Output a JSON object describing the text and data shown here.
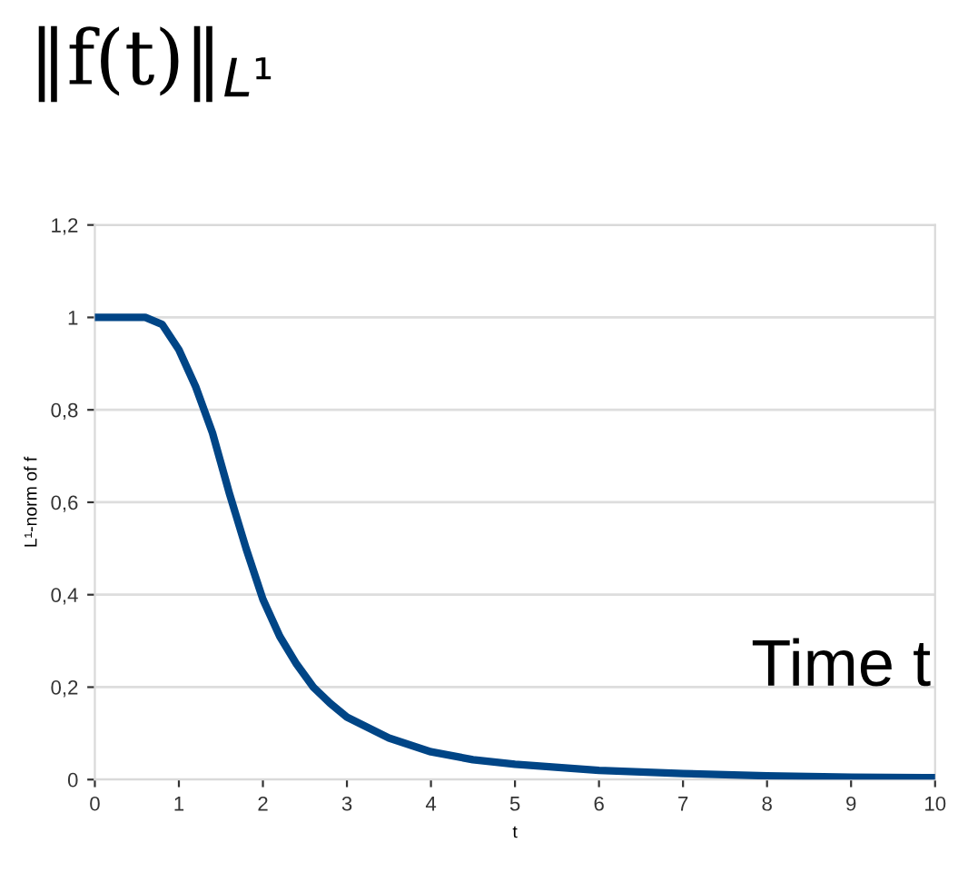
{
  "chart_data": {
    "type": "line",
    "title": "‖f(t)‖$_{L¹}$",
    "xlabel": "t",
    "ylabel": "L¹-norm of f",
    "annotations": [
      "Time t"
    ],
    "series": [
      {
        "color": "#004586",
        "x": [
          0,
          0.3,
          0.6,
          0.8,
          1,
          1.2,
          1.4,
          1.6,
          1.8,
          2,
          2.2,
          2.4,
          2.6,
          2.8,
          3,
          3.5,
          4,
          4.5,
          5,
          6,
          7,
          8,
          9,
          10
        ],
        "values": [
          1,
          1,
          1,
          0.985,
          0.93,
          0.85,
          0.75,
          0.62,
          0.5,
          0.39,
          0.31,
          0.25,
          0.2,
          0.165,
          0.135,
          0.09,
          0.06,
          0.043,
          0.033,
          0.02,
          0.013,
          0.008,
          0.005,
          0.004
        ]
      }
    ],
    "xlim": [
      0,
      10
    ],
    "xticks": [
      0,
      1,
      2,
      3,
      4,
      5,
      6,
      7,
      8,
      9,
      10
    ],
    "ylim": [
      0,
      1.2
    ],
    "yticks": [
      0,
      {
        "value": 0.2,
        "label": "0,2"
      },
      {
        "value": 0.4,
        "label": "0,4"
      },
      {
        "value": 0.6,
        "label": "0,6"
      },
      {
        "value": 0.8,
        "label": "0,8"
      },
      1,
      {
        "value": 1.2,
        "label": "1,2"
      }
    ],
    "grid": "y",
    "legend": false,
    "marker": "none",
    "line_style": "solid"
  }
}
